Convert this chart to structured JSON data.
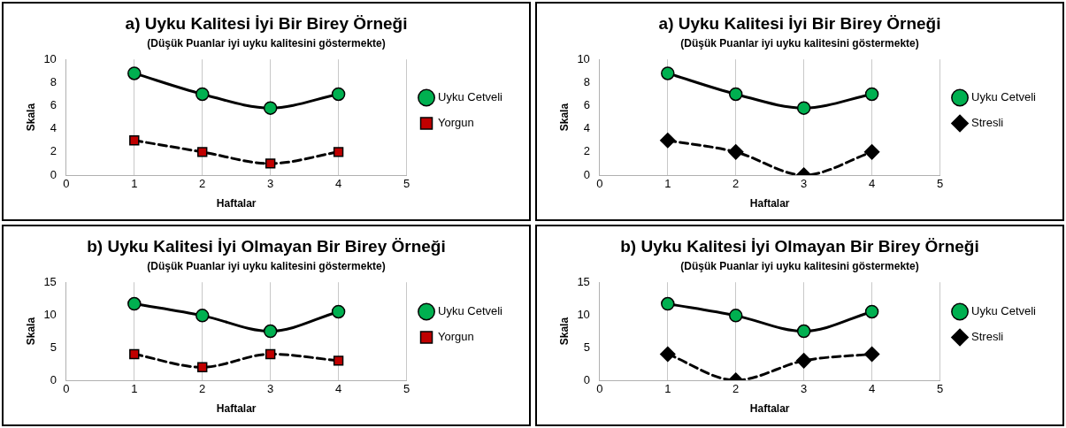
{
  "chart_data": [
    {
      "type": "line",
      "title": "a) Uyku Kalitesi İyi Bir Birey Örneği",
      "subtitle": "(Düşük Puanlar iyi uyku kalitesini göstermekte)",
      "xlabel": "Haftalar",
      "ylabel": "Skala",
      "x": [
        1,
        2,
        3,
        4
      ],
      "xlim": [
        0,
        5
      ],
      "xticks": [
        0,
        1,
        2,
        3,
        4,
        5
      ],
      "ylim": [
        0,
        10
      ],
      "yticks": [
        0,
        2,
        4,
        6,
        8,
        10
      ],
      "grid": "x",
      "legend": "right",
      "series": [
        {
          "name": "Uyku Cetveli",
          "color": "#000000",
          "values": [
            8.8,
            7,
            5.8,
            7
          ],
          "marker": "circle",
          "line_style": "solid"
        },
        {
          "name": "Yorgun",
          "color": "#000000",
          "values": [
            3,
            2,
            1,
            2
          ],
          "marker": "square",
          "line_style": "dashed"
        }
      ]
    },
    {
      "type": "line",
      "title": "a) Uyku Kalitesi İyi Bir Birey Örneği",
      "subtitle": "(Düşük Puanlar iyi uyku kalitesini göstermekte)",
      "xlabel": "Haftalar",
      "ylabel": "Skala",
      "x": [
        1,
        2,
        3,
        4
      ],
      "xlim": [
        0,
        5
      ],
      "xticks": [
        0,
        1,
        2,
        3,
        4,
        5
      ],
      "ylim": [
        0,
        10
      ],
      "yticks": [
        0,
        2,
        4,
        6,
        8,
        10
      ],
      "grid": "x",
      "legend": "right",
      "series": [
        {
          "name": "Uyku Cetveli",
          "color": "#000000",
          "values": [
            8.8,
            7,
            5.8,
            7
          ],
          "marker": "circle",
          "line_style": "solid"
        },
        {
          "name": "Stresli",
          "color": "#000000",
          "values": [
            3,
            2,
            0,
            2
          ],
          "marker": "diamond",
          "line_style": "dashed"
        }
      ]
    },
    {
      "type": "line",
      "title": "b) Uyku Kalitesi İyi Olmayan Bir Birey Örneği",
      "subtitle": "(Düşük Puanlar iyi uyku kalitesini göstermekte)",
      "xlabel": "Haftalar",
      "ylabel": "Skala",
      "x": [
        1,
        2,
        3,
        4
      ],
      "xlim": [
        0,
        5
      ],
      "xticks": [
        0,
        1,
        2,
        3,
        4,
        5
      ],
      "ylim": [
        0,
        15
      ],
      "yticks": [
        0,
        5,
        10,
        15
      ],
      "grid": "x",
      "legend": "right",
      "series": [
        {
          "name": "Uyku Cetveli",
          "color": "#000000",
          "values": [
            11.7,
            9.9,
            7.5,
            10.5
          ],
          "marker": "circle",
          "line_style": "solid"
        },
        {
          "name": "Yorgun",
          "color": "#000000",
          "values": [
            4,
            2,
            4,
            3
          ],
          "marker": "square",
          "line_style": "dashed"
        }
      ]
    },
    {
      "type": "line",
      "title": "b) Uyku Kalitesi İyi Olmayan Bir Birey Örneği",
      "subtitle": "(Düşük Puanlar iyi uyku kalitesini göstermekte)",
      "xlabel": "Haftalar",
      "ylabel": "Skala",
      "x": [
        1,
        2,
        3,
        4
      ],
      "xlim": [
        0,
        5
      ],
      "xticks": [
        0,
        1,
        2,
        3,
        4,
        5
      ],
      "ylim": [
        0,
        15
      ],
      "yticks": [
        0,
        5,
        10,
        15
      ],
      "grid": "x",
      "legend": "right",
      "series": [
        {
          "name": "Uyku Cetveli",
          "color": "#000000",
          "values": [
            11.7,
            9.9,
            7.5,
            10.5
          ],
          "marker": "circle",
          "line_style": "solid"
        },
        {
          "name": "Stresli",
          "color": "#000000",
          "values": [
            4,
            0,
            3,
            4
          ],
          "marker": "diamond",
          "line_style": "dashed"
        }
      ]
    }
  ]
}
